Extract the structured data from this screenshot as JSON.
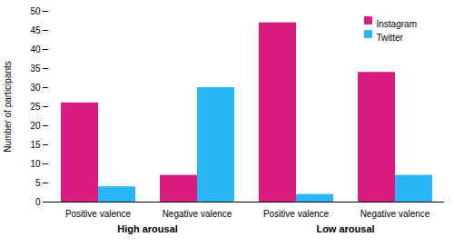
{
  "chart_data": {
    "type": "bar",
    "categories": [
      "Positive valence",
      "Negative valence",
      "Positive valence",
      "Negative valence"
    ],
    "series": [
      {
        "name": "Instagram",
        "color": "#D81B7E",
        "values": [
          26,
          7,
          47,
          34
        ]
      },
      {
        "name": "Twitter",
        "color": "#29B6F6",
        "values": [
          4,
          30,
          2,
          7
        ]
      }
    ],
    "ylabel": "Number of participants",
    "ylim": [
      0,
      50
    ],
    "yticks": [
      0,
      5,
      10,
      15,
      20,
      25,
      30,
      35,
      40,
      45,
      50
    ],
    "legend": "upper right",
    "grid": false,
    "annotations": [
      "High arousal",
      "Low arousal"
    ]
  }
}
